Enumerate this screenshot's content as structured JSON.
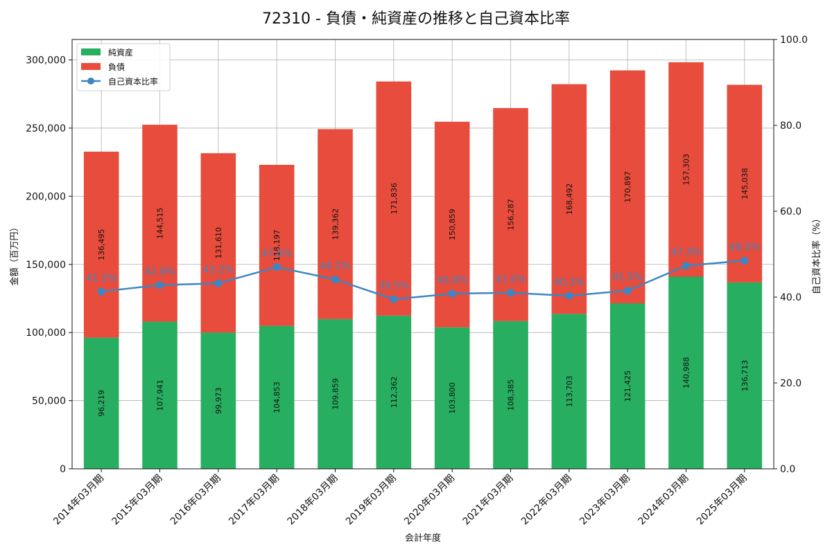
{
  "chart_data": {
    "type": "bar",
    "title": "72310 - 負債・純資産の推移と自己資本比率",
    "xlabel": "会計年度",
    "ylabel": "金額（百万円）",
    "y2label": "自己資本比率（%）",
    "ylim": [
      0,
      315000
    ],
    "y2lim": [
      0,
      100
    ],
    "yticks": [
      0,
      50000,
      100000,
      150000,
      200000,
      250000,
      300000
    ],
    "ytick_labels": [
      "0",
      "50,000",
      "100,000",
      "150,000",
      "200,000",
      "250,000",
      "300,000"
    ],
    "y2ticks": [
      0,
      20,
      40,
      60,
      80,
      100
    ],
    "y2tick_labels": [
      "0.0",
      "20.0",
      "40.0",
      "60.0",
      "80.0",
      "100.0"
    ],
    "grid": true,
    "legend_position": "top-left",
    "categories": [
      "2014年03月期",
      "2015年03月期",
      "2016年03月期",
      "2017年03月期",
      "2018年03月期",
      "2019年03月期",
      "2020年03月期",
      "2021年03月期",
      "2022年03月期",
      "2023年03月期",
      "2024年03月期",
      "2025年03月期"
    ],
    "series": [
      {
        "name": "純資産",
        "kind": "stacked-bar",
        "color": "#27ae60",
        "values": [
          96219,
          107941,
          99973,
          104853,
          109859,
          112362,
          103800,
          108385,
          113703,
          121425,
          140988,
          136713
        ],
        "labels": [
          "96,219",
          "107,941",
          "99,973",
          "104,853",
          "109,859",
          "112,362",
          "103,800",
          "108,385",
          "113,703",
          "121,425",
          "140,988",
          "136,713"
        ]
      },
      {
        "name": "負債",
        "kind": "stacked-bar",
        "color": "#e74c3c",
        "values": [
          136495,
          144515,
          131610,
          118197,
          139362,
          171836,
          150859,
          156287,
          168492,
          170897,
          157303,
          145038
        ],
        "labels": [
          "136,495",
          "144,515",
          "131,610",
          "118,197",
          "139,362",
          "171,836",
          "150,859",
          "156,287",
          "168,492",
          "170,897",
          "157,303",
          "145,038"
        ]
      },
      {
        "name": "自己資本比率",
        "kind": "line",
        "axis": "right",
        "color": "#3d86c4",
        "values": [
          41.3,
          42.8,
          43.2,
          47.0,
          44.1,
          39.5,
          40.8,
          41.0,
          40.3,
          41.5,
          47.3,
          48.5
        ],
        "labels": [
          "41.3%",
          "42.8%",
          "43.2%",
          "47.0%",
          "44.1%",
          "39.5%",
          "40.8%",
          "41.0%",
          "40.3%",
          "41.5%",
          "47.3%",
          "48.5%"
        ]
      }
    ]
  }
}
